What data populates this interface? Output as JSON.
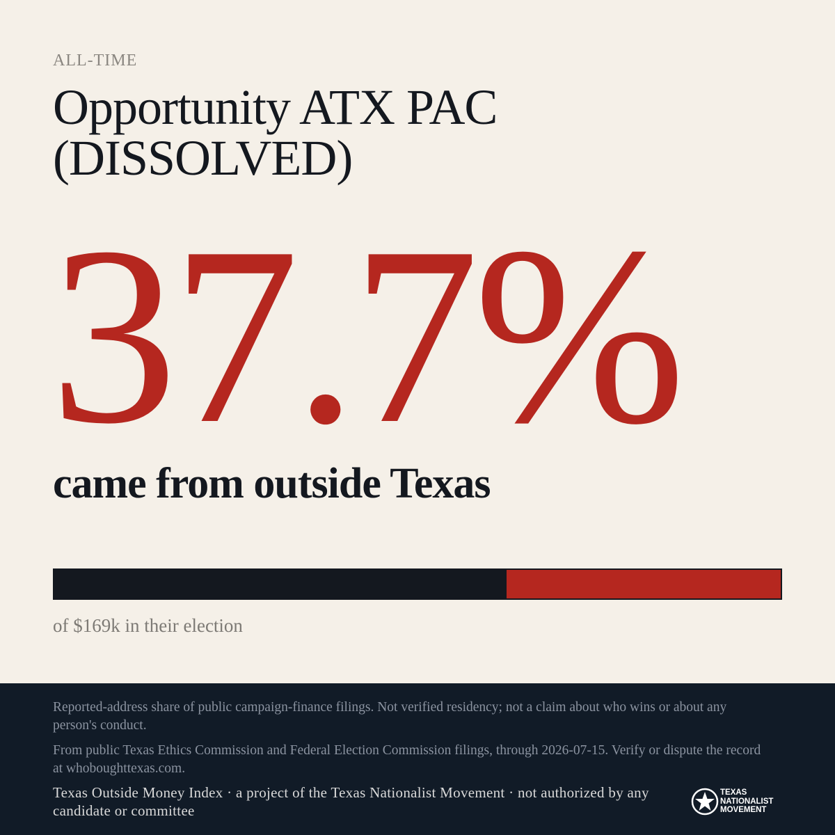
{
  "header": {
    "eyebrow": "ALL-TIME",
    "title_lines": [
      "Opportunity ATX PAC",
      "(DISSOLVED)"
    ]
  },
  "stat": {
    "share": {
      "value": 37.7,
      "label": "37.7%"
    },
    "caption": "came from outside Texas",
    "scale": [
      0,
      100
    ],
    "total_note": "of $169k in their election"
  },
  "footer": {
    "disclaimer": "Reported-address share of public campaign-finance filings. Not verified residency; not a claim about who wins or about any person's conduct.",
    "source": "From public Texas Ethics Commission and Federal Election Commission filings, through 2026-07-15. Verify or dispute the record at whoboughttexas.com.",
    "credit": "Texas Outside Money Index · a project of the Texas Nationalist Movement · not authorized by any candidate or committee",
    "logo_lines": [
      "TEXAS",
      "NATIONALIST",
      "MOVEMENT"
    ]
  }
}
